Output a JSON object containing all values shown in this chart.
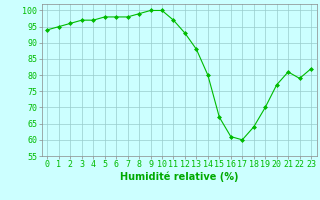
{
  "x": [
    0,
    1,
    2,
    3,
    4,
    5,
    6,
    7,
    8,
    9,
    10,
    11,
    12,
    13,
    14,
    15,
    16,
    17,
    18,
    19,
    20,
    21,
    22,
    23
  ],
  "y": [
    94,
    95,
    96,
    97,
    97,
    98,
    98,
    98,
    99,
    100,
    100,
    97,
    93,
    88,
    80,
    67,
    61,
    60,
    64,
    70,
    77,
    81,
    79,
    82
  ],
  "line_color": "#00bb00",
  "marker_color": "#00bb00",
  "bg_color": "#ccffff",
  "grid_color": "#99cccc",
  "xlabel": "Humidité relative (%)",
  "xlabel_color": "#00aa00",
  "ylim": [
    55,
    102
  ],
  "yticks": [
    55,
    60,
    65,
    70,
    75,
    80,
    85,
    90,
    95,
    100
  ],
  "xtick_labels": [
    "0",
    "1",
    "2",
    "3",
    "4",
    "5",
    "6",
    "7",
    "8",
    "9",
    "10",
    "11",
    "12",
    "13",
    "14",
    "15",
    "16",
    "17",
    "18",
    "19",
    "20",
    "21",
    "22",
    "23"
  ],
  "xlabel_fontsize": 7,
  "tick_fontsize": 6
}
